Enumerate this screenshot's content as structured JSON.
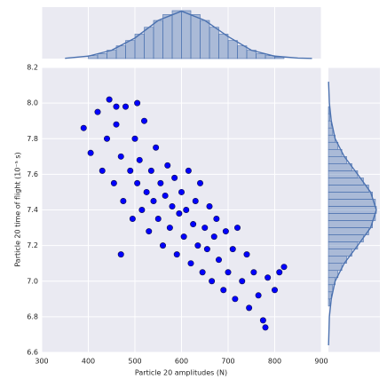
{
  "chart_data": [
    {
      "type": "scatter",
      "xlabel": "Particle 20 amplitudes (N)",
      "ylabel": "Particle 20 time of flight (10⁻⁵ s)",
      "color": "#0000ff",
      "edgecolor": "#10104a",
      "x": [
        390,
        405,
        420,
        430,
        440,
        445,
        455,
        460,
        470,
        475,
        480,
        490,
        495,
        500,
        505,
        510,
        515,
        520,
        525,
        530,
        535,
        540,
        545,
        550,
        555,
        560,
        565,
        570,
        575,
        580,
        585,
        590,
        595,
        600,
        605,
        610,
        615,
        620,
        625,
        630,
        635,
        640,
        645,
        650,
        655,
        660,
        665,
        670,
        675,
        680,
        690,
        695,
        700,
        710,
        715,
        720,
        730,
        740,
        745,
        755,
        765,
        775,
        785,
        800,
        810,
        780,
        470,
        460,
        505,
        820
      ],
      "y": [
        7.86,
        7.72,
        7.95,
        7.62,
        7.8,
        8.02,
        7.55,
        7.88,
        7.7,
        7.45,
        7.98,
        7.62,
        7.35,
        7.8,
        7.55,
        7.68,
        7.4,
        7.9,
        7.5,
        7.28,
        7.62,
        7.45,
        7.75,
        7.35,
        7.55,
        7.2,
        7.48,
        7.65,
        7.3,
        7.42,
        7.58,
        7.15,
        7.38,
        7.5,
        7.25,
        7.4,
        7.62,
        7.1,
        7.32,
        7.45,
        7.2,
        7.55,
        7.05,
        7.3,
        7.18,
        7.42,
        7.0,
        7.25,
        7.35,
        7.12,
        6.95,
        7.28,
        7.05,
        7.18,
        6.9,
        7.3,
        7.0,
        7.15,
        6.85,
        7.05,
        6.92,
        6.78,
        7.02,
        6.95,
        7.05,
        6.74,
        7.15,
        7.98,
        8.0,
        7.08
      ],
      "xlim": [
        300,
        900
      ],
      "xticks": [
        300,
        400,
        500,
        600,
        700,
        800,
        900
      ],
      "ylim": [
        6.6,
        8.2
      ],
      "yticks": [
        6.6,
        6.8,
        {
          "value": 7,
          "label": "7.0"
        },
        7.2,
        7.4,
        7.6,
        7.8,
        {
          "value": 8,
          "label": "8.0"
        },
        8.2
      ],
      "grid": true
    },
    {
      "type": "histogram",
      "orientation": "vertical",
      "color": "#4c72b0",
      "bins": [
        400,
        420,
        440,
        460,
        480,
        500,
        520,
        540,
        560,
        580,
        600,
        620,
        640,
        660,
        680,
        700,
        720,
        740,
        760,
        780,
        800,
        820
      ],
      "values": [
        6,
        10,
        17,
        26,
        37,
        50,
        64,
        78,
        90,
        98,
        98,
        90,
        78,
        64,
        50,
        37,
        26,
        17,
        10,
        6,
        3
      ],
      "kde_x": [
        350,
        400,
        450,
        500,
        550,
        600,
        650,
        700,
        750,
        800,
        850,
        880
      ],
      "kde_y": [
        0.5,
        5,
        17,
        42,
        78,
        97,
        78,
        45,
        17,
        5,
        1,
        0.3
      ]
    },
    {
      "type": "histogram",
      "orientation": "horizontal",
      "color": "#4c72b0",
      "bins": [
        6.86,
        6.9,
        6.94,
        6.98,
        7.02,
        7.06,
        7.1,
        7.14,
        7.18,
        7.22,
        7.26,
        7.3,
        7.34,
        7.38,
        7.42,
        7.46,
        7.5,
        7.54,
        7.58,
        7.62,
        7.66,
        7.7,
        7.74,
        7.78,
        7.82,
        7.86,
        7.9,
        7.94,
        7.98
      ],
      "values": [
        3,
        6,
        9,
        14,
        20,
        28,
        38,
        49,
        61,
        73,
        84,
        92,
        98,
        100,
        98,
        92,
        84,
        73,
        61,
        49,
        38,
        28,
        20,
        14,
        9,
        6,
        3,
        2
      ],
      "kde_x": [
        0.3,
        2,
        6,
        14,
        33,
        61,
        88,
        100,
        88,
        61,
        33,
        14,
        6,
        2,
        0.3
      ],
      "kde_y": [
        6.64,
        6.8,
        6.9,
        7.0,
        7.1,
        7.2,
        7.3,
        7.4,
        7.5,
        7.6,
        7.7,
        7.8,
        7.9,
        8.0,
        8.12
      ]
    }
  ]
}
